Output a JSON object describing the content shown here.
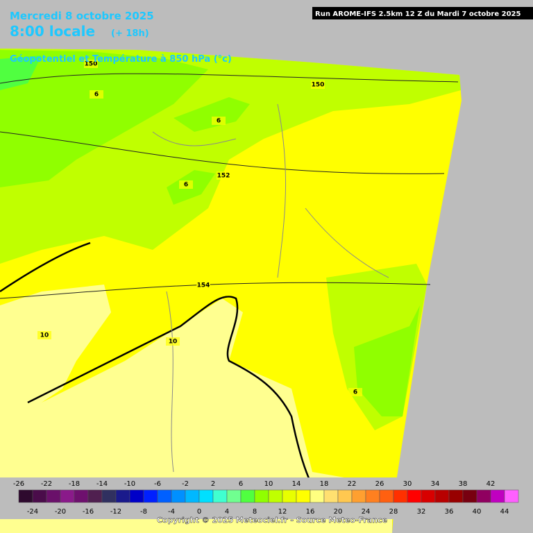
{
  "header": {
    "date_line": "Mercredi 8 octobre 2025",
    "time_line": "8:00 locale",
    "lead_time": "(+ 18h)",
    "subtitle": "Géopotentiel et Température à 850 hPa (°c)",
    "run_info": "Run AROME-IFS 2.5km 12 Z du Mardi 7 octobre 2025"
  },
  "map": {
    "contour_labels": [
      "150",
      "150",
      "6",
      "6",
      "6",
      "152",
      "154",
      "10",
      "10",
      "6"
    ]
  },
  "colorbar": {
    "top_labels": [
      "-26",
      "-22",
      "-18",
      "-14",
      "-10",
      "-6",
      "-2",
      "2",
      "6",
      "10",
      "14",
      "18",
      "22",
      "26",
      "30",
      "34",
      "38",
      "42"
    ],
    "bottom_labels": [
      "-24",
      "-20",
      "-16",
      "-12",
      "-8",
      "-4",
      "0",
      "4",
      "8",
      "12",
      "16",
      "20",
      "24",
      "28",
      "32",
      "36",
      "40",
      "44"
    ],
    "colors": [
      "#2e0a2e",
      "#4a0c4a",
      "#6a106a",
      "#8a1a8a",
      "#6e106e",
      "#502050",
      "#303060",
      "#1a1a8c",
      "#0000c8",
      "#0020ff",
      "#0060ff",
      "#0090ff",
      "#00b8ff",
      "#00e0ff",
      "#40ffd0",
      "#70ff90",
      "#50ff40",
      "#90ff00",
      "#c0ff00",
      "#e8ff00",
      "#ffff00",
      "#ffff80",
      "#ffe070",
      "#ffc850",
      "#ffa030",
      "#ff8020",
      "#ff6010",
      "#ff3000",
      "#ff0000",
      "#d80000",
      "#b80000",
      "#980000",
      "#780010",
      "#900060",
      "#c000c0",
      "#ff60ff"
    ]
  },
  "footer": {
    "copyright": "Copyright © 2025 Meteociel.fr - Source Meteo-France"
  }
}
